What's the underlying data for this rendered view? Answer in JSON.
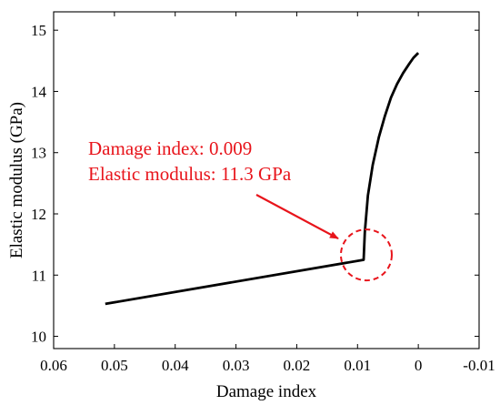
{
  "chart_data": {
    "type": "line",
    "title": "",
    "xlabel": "Damage index",
    "ylabel": "Elastic modulus (GPa)",
    "xlim": [
      0.06,
      -0.01
    ],
    "ylim": [
      9.8,
      15.3
    ],
    "x_reversed": true,
    "x_ticks": [
      0.06,
      0.05,
      0.04,
      0.03,
      0.02,
      0.01,
      0,
      -0.01
    ],
    "x_tick_labels": [
      "0.06",
      "0.05",
      "0.04",
      "0.03",
      "0.02",
      "0.01",
      "0",
      "-0.01"
    ],
    "y_ticks": [
      10,
      11,
      12,
      13,
      14,
      15
    ],
    "y_tick_labels": [
      "10",
      "11",
      "12",
      "13",
      "14",
      "15"
    ],
    "grid": false,
    "series": [
      {
        "color": "#000000",
        "x": [
          0.0515,
          0.009,
          0.0088,
          0.0083,
          0.0075,
          0.0065,
          0.0055,
          0.0045,
          0.0035,
          0.0025,
          0.0015,
          0.0008,
          0.0
        ],
        "y": [
          10.53,
          11.25,
          11.7,
          12.3,
          12.8,
          13.25,
          13.6,
          13.9,
          14.12,
          14.3,
          14.45,
          14.55,
          14.63
        ]
      }
    ],
    "annotations": [
      {
        "lines": [
          "Damage index: 0.009",
          "Elastic modulus: 11.3 GPa"
        ],
        "color": "#e8141b",
        "target": [
          0.009,
          11.3
        ]
      }
    ]
  },
  "colors": {
    "annotation": "#e8141b",
    "line": "#000000",
    "axes": "#000000"
  }
}
